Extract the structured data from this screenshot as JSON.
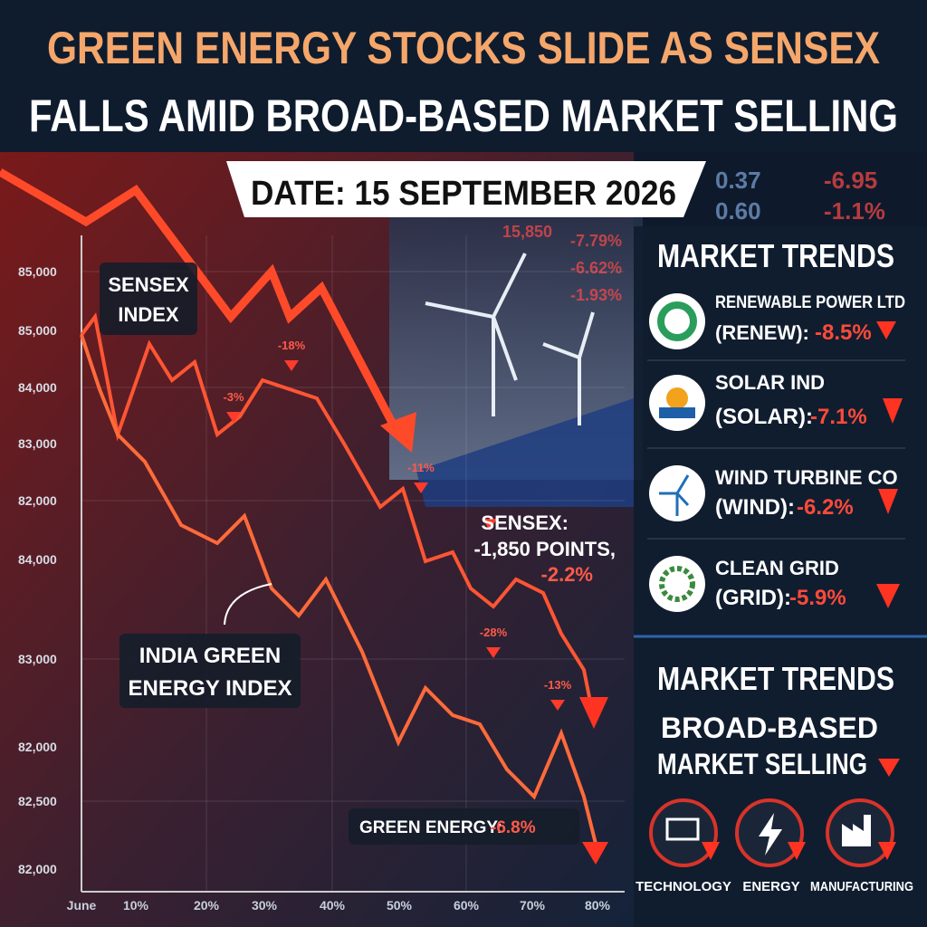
{
  "header": {
    "title_line1": "GREEN ENERGY STOCKS SLIDE AS SENSEX",
    "title_line2": "FALLS AMID BROAD-BASED MARKET SELLING",
    "date": "DATE: 15 SEPTEMBER 2026"
  },
  "ticker": [
    "0.37",
    "-6.95",
    "0.60",
    "-1.1%",
    "15,850",
    "-7.79%",
    "-6.62%",
    "-1.93%"
  ],
  "chart": {
    "y_labels": [
      "85,000",
      "85,000",
      "84,000",
      "83,000",
      "82,000",
      "84,000",
      "83,000",
      "82,000",
      "82,500",
      "82,000"
    ],
    "x_labels": [
      "June",
      "10%",
      "20%",
      "30%",
      "40%",
      "50%",
      "60%",
      "70%",
      "80%"
    ],
    "sensex_label": [
      "SENSEX",
      "INDEX"
    ],
    "green_label": [
      "INDIA GREEN",
      "ENERGY INDEX"
    ],
    "markers": [
      "-3%",
      "-18%",
      "-11%",
      "-28%",
      "-13%"
    ],
    "sensex_note": [
      "SENSEX:",
      "-1,850 POINTS,",
      "-2.2%"
    ],
    "green_note": {
      "label": "GREEN ENERGY:",
      "value": "-6.8%"
    }
  },
  "market_trends": {
    "title": "MARKET TRENDS",
    "stocks": [
      {
        "name": "RENEWABLE POWER LTD",
        "ticker": "(RENEW):",
        "change": "-8.5%"
      },
      {
        "name": "SOLAR IND",
        "ticker": "(SOLAR):",
        "change": "-7.1%"
      },
      {
        "name": "WIND TURBINE CO",
        "ticker": "(WIND):",
        "change": "-6.2%"
      },
      {
        "name": "CLEAN GRID",
        "ticker": "(GRID):",
        "change": "-5.9%"
      }
    ]
  },
  "broad": {
    "title": "MARKET TRENDS",
    "subtitle": [
      "BROAD-BASED",
      "MARKET SELLING"
    ],
    "sectors": [
      "TECHNOLOGY",
      "ENERGY",
      "MANUFACTURING"
    ]
  }
}
